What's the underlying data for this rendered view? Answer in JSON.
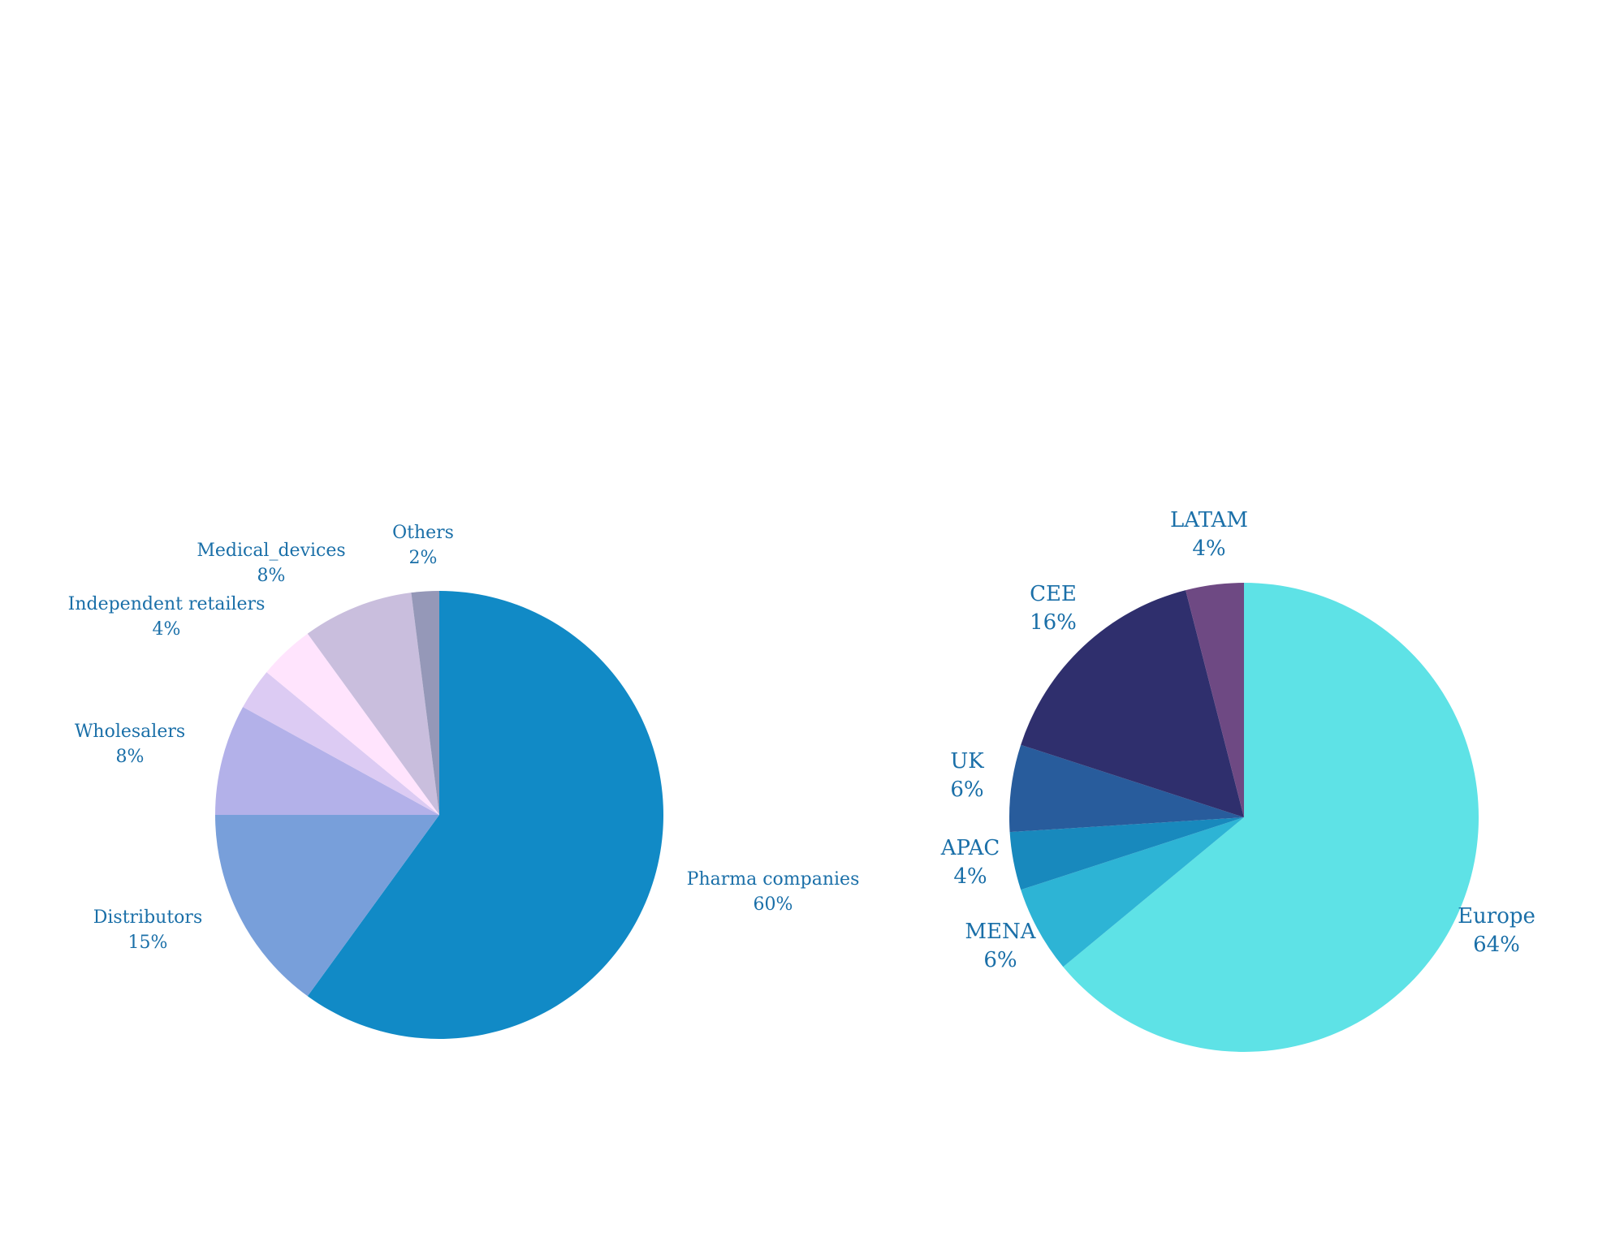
{
  "chart_data": [
    {
      "type": "pie",
      "title": "",
      "slices": [
        {
          "label": "Pharma companies",
          "value": 60,
          "display": "60%",
          "color": "#118ac6"
        },
        {
          "label": "Distributors",
          "value": 15,
          "display": "15%",
          "color": "#789fda"
        },
        {
          "label": "Wholesalers",
          "value": 8,
          "display": "8%",
          "color": "#b3b1e9"
        },
        {
          "label": "",
          "value": 3,
          "display": "",
          "color": "#dccbf3"
        },
        {
          "label": "Independent retailers",
          "value": 4,
          "display": "4%",
          "color": "#ffe4fd"
        },
        {
          "label": "Medical_devices",
          "value": 8,
          "display": "8%",
          "color": "#c9bedd"
        },
        {
          "label": "Others",
          "value": 2,
          "display": "2%",
          "color": "#9598b8"
        }
      ]
    },
    {
      "type": "pie",
      "title": "",
      "slices": [
        {
          "label": "Europe",
          "value": 64,
          "display": "64%",
          "color": "#5ee2e6"
        },
        {
          "label": "MENA",
          "value": 6,
          "display": "6%",
          "color": "#2db4d5"
        },
        {
          "label": "APAC",
          "value": 4,
          "display": "4%",
          "color": "#1889bd"
        },
        {
          "label": "UK",
          "value": 6,
          "display": "6%",
          "color": "#285c9c"
        },
        {
          "label": "CEE",
          "value": 16,
          "display": "16%",
          "color": "#2f2f6d"
        },
        {
          "label": "LATAM",
          "value": 4,
          "display": "4%",
          "color": "#6e4983"
        }
      ]
    }
  ]
}
